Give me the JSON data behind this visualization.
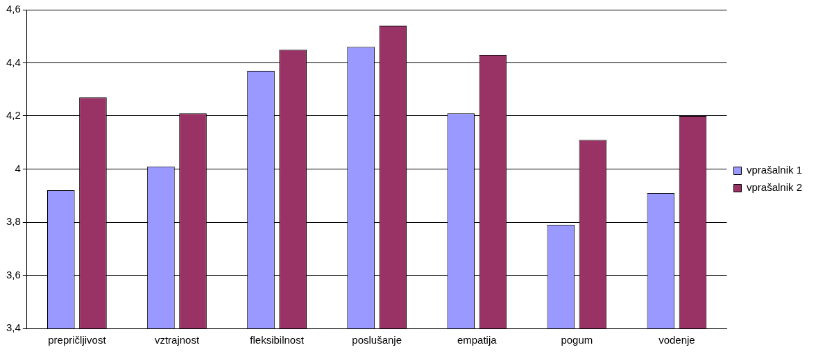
{
  "chart_data": {
    "type": "bar",
    "categories": [
      "prepričljivost",
      "vztrajnost",
      "fleksibilnost",
      "poslušanje",
      "empatija",
      "pogum",
      "vodenje"
    ],
    "series": [
      {
        "name": "vprašalnik 1",
        "color": "#9999ff",
        "values": [
          3.92,
          4.01,
          4.37,
          4.46,
          4.21,
          3.79,
          3.91
        ]
      },
      {
        "name": "vprašalnik 2",
        "color": "#993366",
        "values": [
          4.27,
          4.21,
          4.45,
          4.54,
          4.43,
          4.11,
          4.2
        ]
      }
    ],
    "ylim": [
      3.4,
      4.6
    ],
    "yticks": [
      {
        "value": 3.4,
        "label": "3,4"
      },
      {
        "value": 3.6,
        "label": "3,6"
      },
      {
        "value": 3.8,
        "label": "3,8"
      },
      {
        "value": 4,
        "label": "4"
      },
      {
        "value": 4.2,
        "label": "4,2"
      },
      {
        "value": 4.4,
        "label": "4,4"
      },
      {
        "value": 4.6,
        "label": "4,6"
      }
    ],
    "grid": "y",
    "legend": "right"
  }
}
